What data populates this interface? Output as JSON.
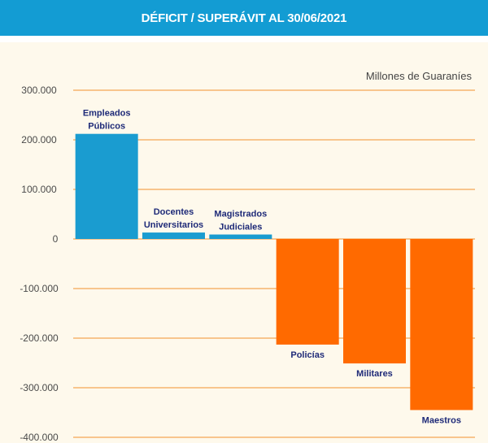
{
  "header": {
    "title": "DÉFICIT / SUPERÁVIT AL 30/06/2021"
  },
  "chart_data": {
    "type": "bar",
    "unit_label": "Millones de Guaraníes",
    "categories": [
      [
        "Empleados",
        "Públicos"
      ],
      [
        "Docentes",
        "Universitarios"
      ],
      [
        "Magistrados",
        "Judiciales"
      ],
      [
        "Policías"
      ],
      [
        "Militares"
      ],
      [
        "Maestros"
      ]
    ],
    "values": [
      212000,
      13000,
      9000,
      -213000,
      -251000,
      -345000
    ],
    "ylim": [
      -400000,
      300000
    ],
    "yticks": [
      300000,
      200000,
      100000,
      0,
      -100000,
      -200000,
      -300000,
      -400000
    ],
    "ytick_labels": [
      "300.000",
      "200.000",
      "100.000",
      "0",
      "-100.000",
      "-200.000",
      "-300.000",
      "-400.000"
    ],
    "grid": true,
    "colors": {
      "positive": "#1a9cd0",
      "negative": "#ff6a00",
      "grid": "#f8c58d",
      "header": "#139cd3",
      "panel": "#fef9ec"
    }
  }
}
